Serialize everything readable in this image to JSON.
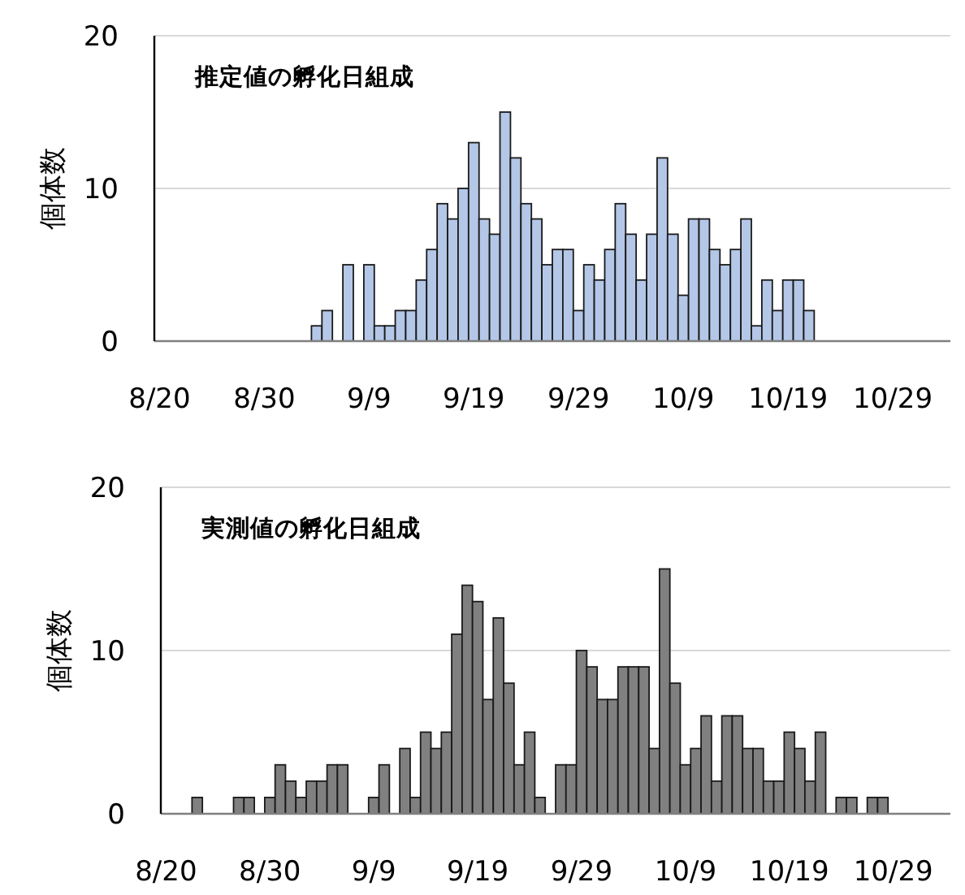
{
  "chart_data": [
    {
      "type": "bar",
      "title": "推定値の孵化日組成",
      "ylabel": "個体数",
      "color": "#b4c7e7",
      "grid": "y",
      "ylim": [
        0,
        20
      ],
      "yticks": [
        0,
        10,
        20
      ],
      "categories": [
        "8/20",
        null,
        null,
        null,
        null,
        null,
        null,
        null,
        null,
        null,
        "8/30",
        null,
        null,
        null,
        null,
        null,
        null,
        null,
        null,
        null,
        "9/9",
        null,
        null,
        null,
        null,
        null,
        null,
        null,
        null,
        null,
        "9/19",
        null,
        null,
        null,
        null,
        null,
        null,
        null,
        null,
        null,
        "9/29",
        null,
        null,
        null,
        null,
        null,
        null,
        null,
        null,
        null,
        "10/9",
        null,
        null,
        null,
        null,
        null,
        null,
        null,
        null,
        null,
        "10/19",
        null,
        null,
        null,
        null,
        null,
        null,
        null,
        null,
        null,
        "10/29",
        null,
        null,
        null,
        null,
        null
      ],
      "values": [
        0,
        0,
        0,
        0,
        0,
        0,
        0,
        0,
        0,
        0,
        0,
        0,
        0,
        0,
        0,
        1,
        2,
        0,
        5,
        0,
        5,
        1,
        1,
        2,
        2,
        4,
        6,
        9,
        8,
        10,
        13,
        8,
        7,
        15,
        12,
        9,
        8,
        5,
        6,
        6,
        2,
        5,
        4,
        6,
        9,
        7,
        4,
        7,
        12,
        7,
        3,
        8,
        8,
        6,
        5,
        6,
        8,
        1,
        4,
        2,
        4,
        4,
        2,
        0,
        0,
        0,
        0,
        0,
        0,
        0,
        0,
        0,
        0,
        0,
        0,
        0
      ]
    },
    {
      "type": "bar",
      "title": "実測値の孵化日組成",
      "ylabel": "個体数",
      "color": "#808080",
      "grid": "y",
      "ylim": [
        0,
        20
      ],
      "yticks": [
        0,
        10,
        20
      ],
      "categories": [
        "8/20",
        null,
        null,
        null,
        null,
        null,
        null,
        null,
        null,
        null,
        "8/30",
        null,
        null,
        null,
        null,
        null,
        null,
        null,
        null,
        null,
        "9/9",
        null,
        null,
        null,
        null,
        null,
        null,
        null,
        null,
        null,
        "9/19",
        null,
        null,
        null,
        null,
        null,
        null,
        null,
        null,
        null,
        "9/29",
        null,
        null,
        null,
        null,
        null,
        null,
        null,
        null,
        null,
        "10/9",
        null,
        null,
        null,
        null,
        null,
        null,
        null,
        null,
        null,
        "10/19",
        null,
        null,
        null,
        null,
        null,
        null,
        null,
        null,
        null,
        "10/29",
        null,
        null,
        null,
        null,
        null
      ],
      "values": [
        0,
        0,
        0,
        1,
        0,
        0,
        0,
        1,
        1,
        0,
        1,
        3,
        2,
        1,
        2,
        2,
        3,
        3,
        0,
        0,
        1,
        3,
        0,
        4,
        1,
        5,
        4,
        5,
        11,
        14,
        13,
        7,
        12,
        8,
        3,
        5,
        1,
        0,
        3,
        3,
        10,
        9,
        7,
        7,
        9,
        9,
        9,
        4,
        15,
        8,
        3,
        4,
        6,
        2,
        6,
        6,
        4,
        4,
        2,
        2,
        5,
        4,
        2,
        5,
        0,
        1,
        1,
        0,
        1,
        1,
        0,
        0,
        0,
        0,
        0,
        0
      ]
    }
  ]
}
